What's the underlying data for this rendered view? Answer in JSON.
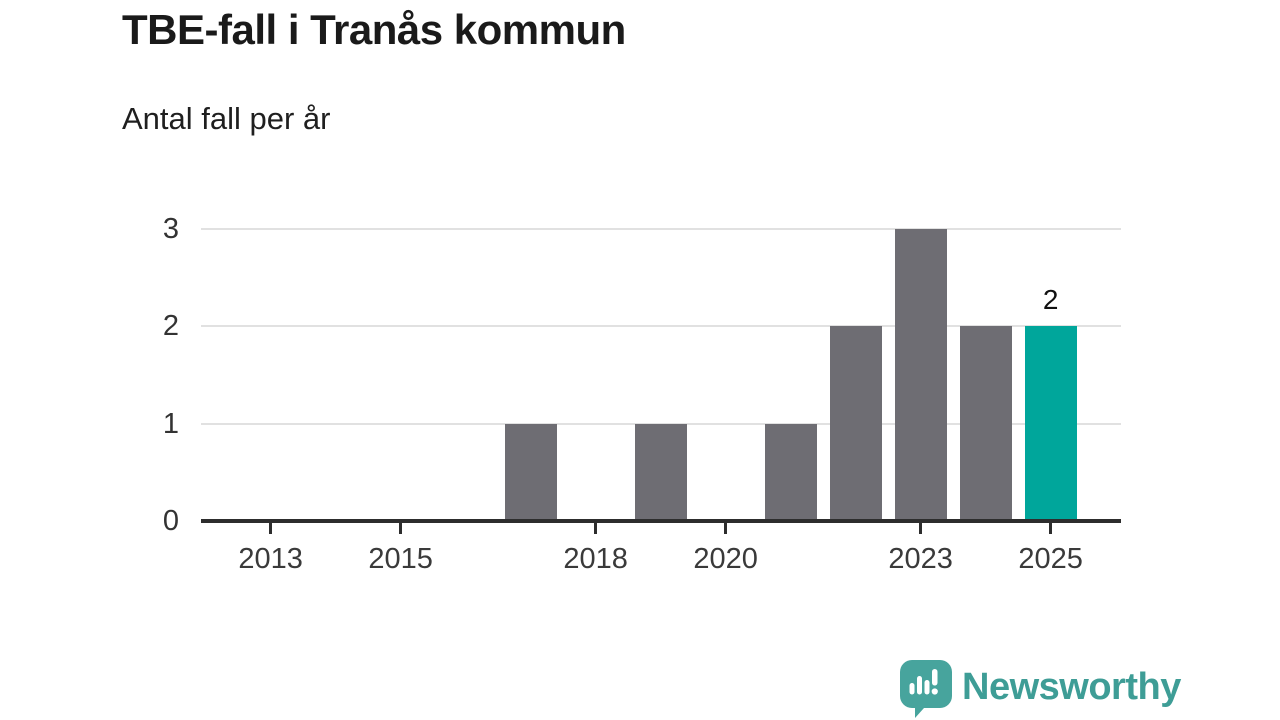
{
  "title": "TBE-fall i Tranås kommun",
  "subtitle": "Antal fall per år",
  "chart_data": {
    "type": "bar",
    "categories": [
      "2012",
      "2013",
      "2014",
      "2015",
      "2016",
      "2017",
      "2018",
      "2019",
      "2020",
      "2021",
      "2022",
      "2023",
      "2024",
      "2025"
    ],
    "values": [
      0,
      0,
      0,
      0,
      0,
      1,
      0,
      1,
      0,
      1,
      2,
      3,
      2,
      2
    ],
    "title": "TBE-fall i Tranås kommun",
    "subtitle": "Antal fall per år",
    "xlabel": "",
    "ylabel": "Antal fall per år",
    "ylim": [
      0,
      3
    ],
    "y_ticks": [
      "0",
      "1",
      "2",
      "3"
    ],
    "x_ticks": [
      "2013",
      "2015",
      "2018",
      "2020",
      "2023",
      "2025"
    ],
    "grid": true,
    "legend_position": "none",
    "highlight_category": "2025",
    "annotation": {
      "category": "2025",
      "label": "2"
    },
    "colors": {
      "bar": "#6e6d73",
      "highlight": "#00a69b",
      "grid": "#e1e1e1",
      "axis": "#2d2d2d"
    }
  },
  "branding": {
    "logo_text": "Newsworthy",
    "logo_text_color": "#3e9d96",
    "badge_color": "#47a49d"
  }
}
